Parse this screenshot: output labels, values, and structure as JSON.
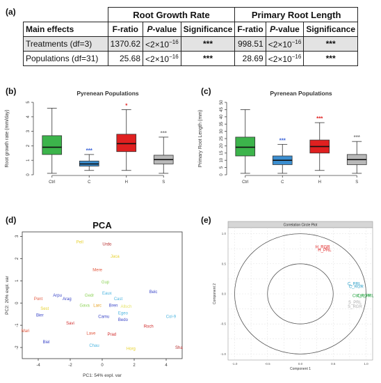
{
  "panel_a": {
    "label": "(a)",
    "group_headers": [
      "Root Growth Rate",
      "Primary Root Length"
    ],
    "columns": [
      "Main effects",
      "F-ratio",
      "P-value",
      "Significance",
      "F-ratio",
      "P-value",
      "Significance"
    ],
    "column_pvalue_italic": "P",
    "column_pvalue_rest": "-value",
    "rows": [
      {
        "effect": "Treatments (df=3)",
        "f1": "1370.62",
        "p1_base": "<2×10",
        "p1_exp": "−16",
        "s1": "***",
        "f2": "998.51",
        "p2_base": "<2×10",
        "p2_exp": "−16",
        "s2": "***"
      },
      {
        "effect": "Populations (df=31)",
        "f1": "25.68",
        "p1_base": "<2×10",
        "p1_exp": "−16",
        "s1": "***",
        "f2": "28.69",
        "p2_base": "<2×10",
        "p2_exp": "−16",
        "s2": "***"
      }
    ]
  },
  "panel_b": {
    "label": "(b)",
    "chart_data": {
      "type": "boxplot",
      "title": "Pyrenean Populations",
      "ylabel": "Root growth rate (mm/day)",
      "ylim": [
        0,
        5
      ],
      "yticks": [
        "0",
        "1",
        "2",
        "3",
        "4",
        "5"
      ],
      "categories": [
        "Ctrl",
        "C",
        "H",
        "S"
      ],
      "boxes": [
        {
          "min": 0.1,
          "q1": 1.4,
          "median": 1.9,
          "q3": 2.7,
          "max": 4.6,
          "color": "#3cb44b",
          "sig": "",
          "sig_color": ""
        },
        {
          "min": 0.3,
          "q1": 0.6,
          "median": 0.75,
          "q3": 0.95,
          "max": 1.4,
          "color": "#3b8ed0",
          "sig": "***",
          "sig_color": "#3a62d8"
        },
        {
          "min": 0.3,
          "q1": 1.6,
          "median": 2.15,
          "q3": 2.8,
          "max": 4.5,
          "color": "#e02020",
          "sig": "*",
          "sig_color": "#e02020"
        },
        {
          "min": 0.1,
          "q1": 0.75,
          "median": 1.05,
          "q3": 1.35,
          "max": 2.6,
          "color": "#b8b8b8",
          "sig": "***",
          "sig_color": "#888888"
        }
      ]
    }
  },
  "panel_c": {
    "label": "(c)",
    "chart_data": {
      "type": "boxplot",
      "title": "Pyrenean Populations",
      "ylabel": "Primary Root Length (mm)",
      "ylim": [
        0,
        50
      ],
      "yticks": [
        "0",
        "5",
        "10",
        "15",
        "20",
        "25",
        "30",
        "35",
        "40",
        "45",
        "50"
      ],
      "categories": [
        "Ctrl",
        "C",
        "H",
        "S"
      ],
      "boxes": [
        {
          "min": 1,
          "q1": 13,
          "median": 19,
          "q3": 26,
          "max": 45,
          "color": "#3cb44b",
          "sig": "",
          "sig_color": ""
        },
        {
          "min": 1,
          "q1": 7,
          "median": 10,
          "q3": 13,
          "max": 21,
          "color": "#3b8ed0",
          "sig": "***",
          "sig_color": "#3a62d8"
        },
        {
          "min": 3,
          "q1": 15,
          "median": 19.5,
          "q3": 24,
          "max": 36,
          "color": "#e02020",
          "sig": "***",
          "sig_color": "#e02020"
        },
        {
          "min": 1,
          "q1": 7,
          "median": 10.5,
          "q3": 14,
          "max": 23,
          "color": "#b8b8b8",
          "sig": "***",
          "sig_color": "#888888"
        }
      ]
    }
  },
  "panel_d": {
    "label": "(d)",
    "chart_data": {
      "type": "scatter",
      "title": "PCA",
      "xlabel": "PC1: 54% expl. var",
      "ylabel": "PC2: 20% expl. var",
      "xlim": [
        -5,
        5
      ],
      "ylim": [
        -2.5,
        3.2
      ],
      "xticks": [
        -4,
        -2,
        0,
        2,
        4
      ],
      "yticks": [
        -2,
        -1,
        0,
        1,
        2,
        3
      ],
      "points": [
        {
          "label": "Pell",
          "x": -1.4,
          "y": 2.75,
          "color": "#e6d12c"
        },
        {
          "label": "Urdo",
          "x": 0.3,
          "y": 2.65,
          "color": "#b52a2a"
        },
        {
          "label": "Jaca",
          "x": 0.8,
          "y": 2.1,
          "color": "#e6d12c"
        },
        {
          "label": "Mere",
          "x": -0.3,
          "y": 1.5,
          "color": "#e2563c"
        },
        {
          "label": "Gup",
          "x": 0.2,
          "y": 0.95,
          "color": "#8fd35a"
        },
        {
          "label": "Belc",
          "x": 3.2,
          "y": 0.5,
          "color": "#3a46c8"
        },
        {
          "label": "Eaux",
          "x": 0.3,
          "y": 0.45,
          "color": "#4cb5e0"
        },
        {
          "label": "Arpu",
          "x": -2.8,
          "y": 0.35,
          "color": "#3a46c8"
        },
        {
          "label": "Gedr",
          "x": -0.8,
          "y": 0.35,
          "color": "#8fd35a"
        },
        {
          "label": "Cast",
          "x": 1.0,
          "y": 0.2,
          "color": "#4cb5e0"
        },
        {
          "label": "Arag",
          "x": -2.2,
          "y": 0.2,
          "color": "#3a46c8"
        },
        {
          "label": "Pont",
          "x": -4.0,
          "y": 0.2,
          "color": "#e2563c"
        },
        {
          "label": "Gava",
          "x": -1.1,
          "y": -0.1,
          "color": "#8fd35a"
        },
        {
          "label": "Larc",
          "x": -0.3,
          "y": -0.1,
          "color": "#e6a020"
        },
        {
          "label": "Bren",
          "x": 0.7,
          "y": -0.1,
          "color": "#3a46c8"
        },
        {
          "label": "Allsch",
          "x": 1.5,
          "y": -0.15,
          "color": "#e6e46a"
        },
        {
          "label": "Sest",
          "x": -3.6,
          "y": -0.25,
          "color": "#e6d12c"
        },
        {
          "label": "Egeo",
          "x": 1.3,
          "y": -0.45,
          "color": "#4cb5e0"
        },
        {
          "label": "Bier",
          "x": -3.9,
          "y": -0.55,
          "color": "#3a46c8"
        },
        {
          "label": "Camu",
          "x": 0.1,
          "y": -0.6,
          "color": "#3a46c8"
        },
        {
          "label": "Col-9",
          "x": 4.3,
          "y": -0.6,
          "color": "#4cb5e0"
        },
        {
          "label": "Bedo",
          "x": 1.3,
          "y": -0.75,
          "color": "#3a46c8"
        },
        {
          "label": "Savi",
          "x": -2.0,
          "y": -0.9,
          "color": "#d02a2a"
        },
        {
          "label": "Roch",
          "x": 2.9,
          "y": -1.05,
          "color": "#d02a2a"
        },
        {
          "label": "Mari",
          "x": -4.8,
          "y": -1.25,
          "color": "#e2563c"
        },
        {
          "label": "Lave",
          "x": -0.7,
          "y": -1.35,
          "color": "#e2563c"
        },
        {
          "label": "Prad",
          "x": 0.6,
          "y": -1.4,
          "color": "#d02a2a"
        },
        {
          "label": "Biel",
          "x": -3.5,
          "y": -1.75,
          "color": "#3a46c8"
        },
        {
          "label": "Chau",
          "x": -0.5,
          "y": -1.9,
          "color": "#4cb5e0"
        },
        {
          "label": "Horg",
          "x": 1.8,
          "y": -2.05,
          "color": "#e6d12c"
        },
        {
          "label": "Sha",
          "x": 4.8,
          "y": -2.0,
          "color": "#b52a2a"
        }
      ]
    }
  },
  "panel_e": {
    "label": "(e)",
    "chart_data": {
      "type": "scatter",
      "title": "Correlation Circle Plot",
      "xlabel": "Component 1",
      "ylabel": "Component 2",
      "xlim": [
        -1.1,
        1.1
      ],
      "ylim": [
        -1.1,
        1.1
      ],
      "xticks": [
        "-1.0",
        "-0.5",
        "0.0",
        "0.5",
        "1.0"
      ],
      "yticks": [
        "-1.0",
        "-0.5",
        "0.0",
        "0.5",
        "1.0"
      ],
      "radii": [
        1.0,
        0.5
      ],
      "points": [
        {
          "label": "H_RGR",
          "x": 0.34,
          "y": 0.78,
          "color": "#e02020"
        },
        {
          "label": "H_PRL",
          "x": 0.37,
          "y": 0.73,
          "color": "#e02020"
        },
        {
          "label": "C_PRL",
          "x": 0.82,
          "y": 0.17,
          "color": "#2a9fc8"
        },
        {
          "label": "C_RGR",
          "x": 0.85,
          "y": 0.12,
          "color": "#2a9fc8"
        },
        {
          "label": "Ctrl_RGR",
          "x": 0.93,
          "y": -0.03,
          "color": "#2fa84a"
        },
        {
          "label": "Ctrl_PRL",
          "x": 0.99,
          "y": -0.03,
          "color": "#2fa84a"
        },
        {
          "label": "S_PRL",
          "x": 0.83,
          "y": -0.14,
          "color": "#aaaaaa"
        },
        {
          "label": "S_RGR",
          "x": 0.83,
          "y": -0.21,
          "color": "#aaaaaa"
        }
      ]
    }
  }
}
